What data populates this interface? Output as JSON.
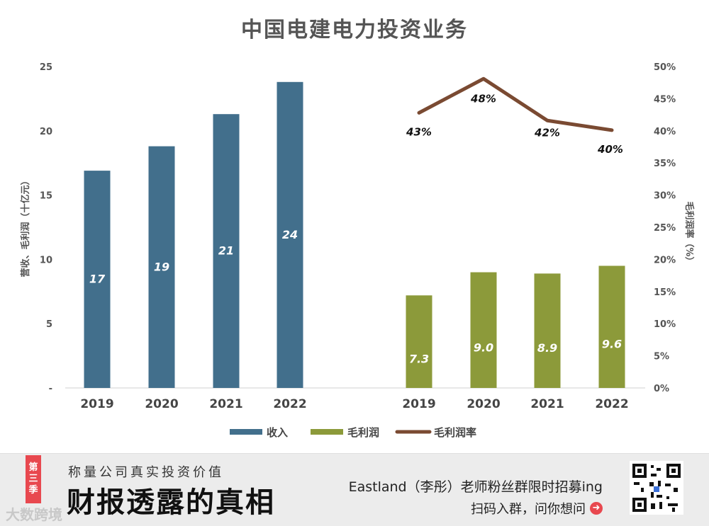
{
  "chart_data": {
    "type": "bar",
    "title": "中国电建电力投资业务",
    "left_axis": {
      "label": "营收、毛利润（十亿元）",
      "ticks": [
        "-",
        "5",
        "10",
        "15",
        "20",
        "25"
      ],
      "range": [
        0,
        25
      ]
    },
    "right_axis": {
      "label": "毛利润率（%）",
      "ticks": [
        "0%",
        "5%",
        "10%",
        "15%",
        "20%",
        "25%",
        "30%",
        "35%",
        "40%",
        "45%",
        "50%"
      ],
      "range": [
        0,
        0.5
      ]
    },
    "groups": [
      {
        "name": "收入",
        "categories": [
          "2019",
          "2020",
          "2021",
          "2022"
        ],
        "values": [
          17,
          19,
          21,
          24
        ],
        "labels": [
          "17",
          "19",
          "21",
          "24"
        ],
        "color": "#426f8c"
      },
      {
        "name": "毛利润",
        "categories": [
          "2019",
          "2020",
          "2021",
          "2022"
        ],
        "values": [
          7.3,
          9.0,
          8.9,
          9.6
        ],
        "labels": [
          "7.3",
          "9.0",
          "8.9",
          "9.6"
        ],
        "color": "#8c9a3a"
      }
    ],
    "line_series": {
      "name": "毛利润率",
      "categories": [
        "2019",
        "2020",
        "2021",
        "2022"
      ],
      "values": [
        0.43,
        0.48,
        0.42,
        0.4
      ],
      "labels": [
        "43%",
        "48%",
        "42%",
        "40%"
      ],
      "color": "#7a4a32"
    },
    "exact_bar_values": [
      16.9,
      18.8,
      21.3,
      23.8,
      7.2,
      9.0,
      8.9,
      9.5
    ],
    "exact_line_values": [
      0.428,
      0.481,
      0.416,
      0.401
    ],
    "legend": [
      "收入",
      "毛利润",
      "毛利润率"
    ],
    "legend_position": "bottom"
  },
  "footer": {
    "season_chars": [
      "第",
      "三",
      "季"
    ],
    "subtitle": "称量公司真实投资价值",
    "title": "财报透露的真相",
    "watermark": "大数跨境",
    "promo": "Eastland（李彤）老师粉丝群限时招募ing",
    "cta": "扫码入群，问你想问",
    "accent": "#e8484f"
  }
}
